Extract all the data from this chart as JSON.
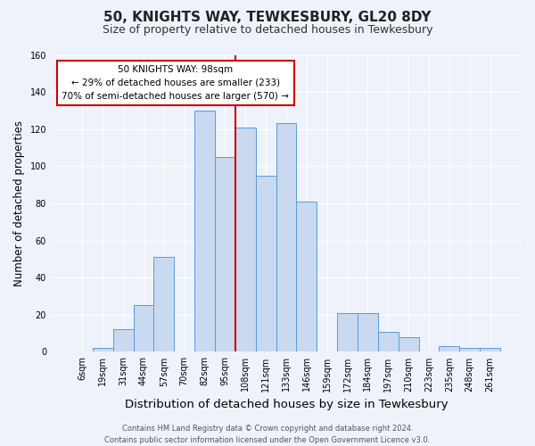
{
  "title": "50, KNIGHTS WAY, TEWKESBURY, GL20 8DY",
  "subtitle": "Size of property relative to detached houses in Tewkesbury",
  "xlabel": "Distribution of detached houses by size in Tewkesbury",
  "ylabel": "Number of detached properties",
  "categories": [
    "6sqm",
    "19sqm",
    "31sqm",
    "44sqm",
    "57sqm",
    "70sqm",
    "82sqm",
    "95sqm",
    "108sqm",
    "121sqm",
    "133sqm",
    "146sqm",
    "159sqm",
    "172sqm",
    "184sqm",
    "197sqm",
    "210sqm",
    "223sqm",
    "235sqm",
    "248sqm",
    "261sqm"
  ],
  "values": [
    0,
    2,
    12,
    25,
    51,
    0,
    130,
    105,
    121,
    95,
    123,
    81,
    0,
    21,
    21,
    11,
    8,
    0,
    3,
    2,
    2
  ],
  "bar_color": "#c8d9f0",
  "bar_edge_color": "#5b9bd5",
  "ylim": [
    0,
    160
  ],
  "yticks": [
    0,
    20,
    40,
    60,
    80,
    100,
    120,
    140,
    160
  ],
  "vline_x": 7.5,
  "vline_color": "#cc0000",
  "annotation_title": "50 KNIGHTS WAY: 98sqm",
  "annotation_line1": "← 29% of detached houses are smaller (233)",
  "annotation_line2": "70% of semi-detached houses are larger (570) →",
  "annotation_box_color": "#cc0000",
  "footer_line1": "Contains HM Land Registry data © Crown copyright and database right 2024.",
  "footer_line2": "Contains public sector information licensed under the Open Government Licence v3.0.",
  "background_color": "#eef2fa",
  "grid_color": "#ffffff",
  "title_fontsize": 11,
  "subtitle_fontsize": 9,
  "xlabel_fontsize": 9.5,
  "ylabel_fontsize": 8.5,
  "tick_fontsize": 7,
  "footer_fontsize": 6,
  "ann_fontsize": 7.5
}
